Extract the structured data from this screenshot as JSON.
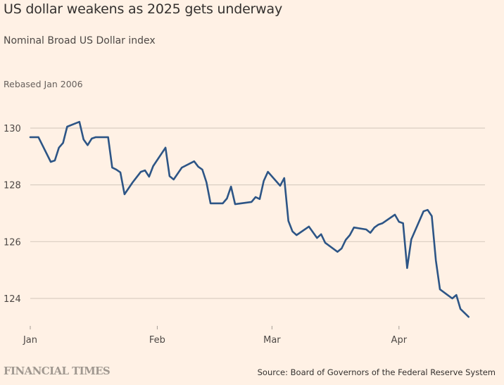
{
  "chart_data": {
    "type": "line",
    "title": "US dollar weakens as 2025 gets underway",
    "subtitle": "Nominal Broad US Dollar index",
    "unit_label": "Rebased Jan 2006",
    "xlabel": "",
    "ylabel": "",
    "x_unit": "days since Jan 1 2025",
    "xlim": [
      0,
      111
    ],
    "ylim": [
      123,
      130.9
    ],
    "yticks": [
      {
        "value": 124,
        "label": "124"
      },
      {
        "value": 126,
        "label": "126"
      },
      {
        "value": 128,
        "label": "128"
      },
      {
        "value": 130,
        "label": "130"
      }
    ],
    "xticks": [
      {
        "value": 0,
        "label": "Jan"
      },
      {
        "value": 31,
        "label": "Feb"
      },
      {
        "value": 59,
        "label": "Mar"
      },
      {
        "value": 90,
        "label": "Apr"
      }
    ],
    "grid": true,
    "legend": "none",
    "series": [
      {
        "name": "Nominal Broad US Dollar index",
        "color": "#2d5586",
        "x": [
          0,
          2,
          5,
          6,
          7,
          8,
          9,
          12,
          13,
          14,
          15,
          16,
          19,
          20,
          21,
          22,
          23,
          25,
          27,
          28,
          29,
          30,
          33,
          34,
          35,
          37,
          40,
          41,
          42,
          43,
          44,
          47,
          48,
          49,
          50,
          54,
          55,
          56,
          57,
          58,
          61,
          62,
          63,
          64,
          65,
          68,
          70,
          71,
          72,
          75,
          76,
          77,
          78,
          79,
          82,
          83,
          84,
          85,
          86,
          89,
          90,
          91,
          92,
          93,
          96,
          97,
          98,
          99,
          100,
          103,
          104,
          105,
          107
        ],
        "values": [
          129.68,
          129.68,
          128.81,
          128.86,
          129.31,
          129.48,
          130.05,
          130.22,
          129.6,
          129.4,
          129.63,
          129.68,
          129.68,
          128.61,
          128.54,
          128.44,
          127.67,
          128.09,
          128.46,
          128.51,
          128.29,
          128.66,
          129.31,
          128.31,
          128.19,
          128.61,
          128.83,
          128.64,
          128.54,
          128.09,
          127.35,
          127.35,
          127.52,
          127.94,
          127.32,
          127.4,
          127.57,
          127.5,
          128.14,
          128.46,
          127.97,
          128.24,
          126.73,
          126.36,
          126.23,
          126.53,
          126.13,
          126.26,
          125.96,
          125.64,
          125.76,
          126.06,
          126.23,
          126.5,
          126.43,
          126.31,
          126.5,
          126.6,
          126.65,
          126.95,
          126.7,
          126.65,
          125.07,
          126.08,
          127.07,
          127.12,
          126.9,
          125.34,
          124.32,
          124.0,
          124.12,
          123.63,
          123.35
        ]
      }
    ]
  },
  "footer": {
    "brand": "FINANCIAL TIMES",
    "source": "Source: Board of Governors of the Federal Reserve System"
  }
}
